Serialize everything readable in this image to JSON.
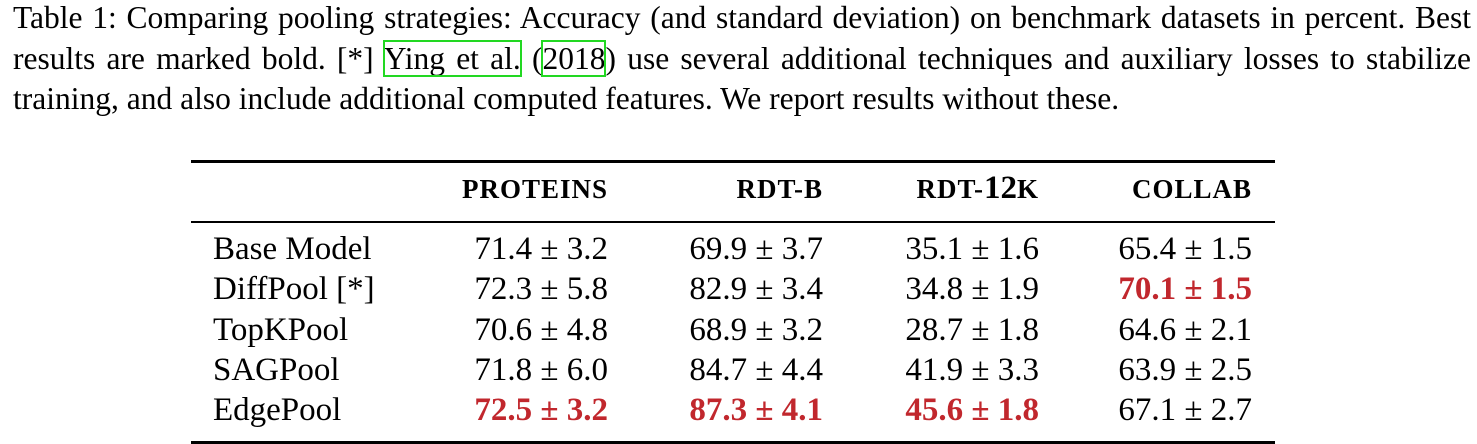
{
  "caption": {
    "part1": "Table 1: Comparing pooling strategies: Accuracy (and standard deviation) on benchmark datasets in percent. Best results are marked bold. [*] ",
    "cite_author": "Ying et al.",
    "part2": " (",
    "cite_year": "2018",
    "part3": ") use several additional techniques and auxiliary losses to stabilize training, and also include additional computed features. We report results without these."
  },
  "table": {
    "headers": {
      "proteins": "PROTEINS",
      "rdtb": "RDT-B",
      "rdt12k_prefix": "RDT-",
      "rdt12k_num": "12",
      "rdt12k_suffix": "K",
      "collab": "COLLAB"
    },
    "rows": [
      {
        "name": "Base Model",
        "proteins": "71.4 ± 3.2",
        "rdtb": "69.9 ± 3.7",
        "rdt12k": "35.1 ± 1.6",
        "collab": "65.4 ± 1.5"
      },
      {
        "name": "DiffPool [*]",
        "proteins": "72.3 ± 5.8",
        "rdtb": "82.9 ± 3.4",
        "rdt12k": "34.8 ± 1.9",
        "collab": "70.1 ± 1.5"
      },
      {
        "name": "TopKPool",
        "proteins": "70.6 ± 4.8",
        "rdtb": "68.9 ± 3.2",
        "rdt12k": "28.7 ± 1.8",
        "collab": "64.6 ± 2.1"
      },
      {
        "name": "SAGPool",
        "proteins": "71.8 ± 6.0",
        "rdtb": "84.7 ± 4.4",
        "rdt12k": "41.9 ± 3.3",
        "collab": "63.9 ± 2.5"
      },
      {
        "name": "EdgePool",
        "proteins": "72.5 ± 3.2",
        "rdtb": "87.3 ± 4.1",
        "rdt12k": "45.6 ± 1.8",
        "collab": "67.1 ± 2.7"
      }
    ]
  },
  "colors": {
    "best": "#c1272d",
    "citation_box": "#22d822"
  }
}
